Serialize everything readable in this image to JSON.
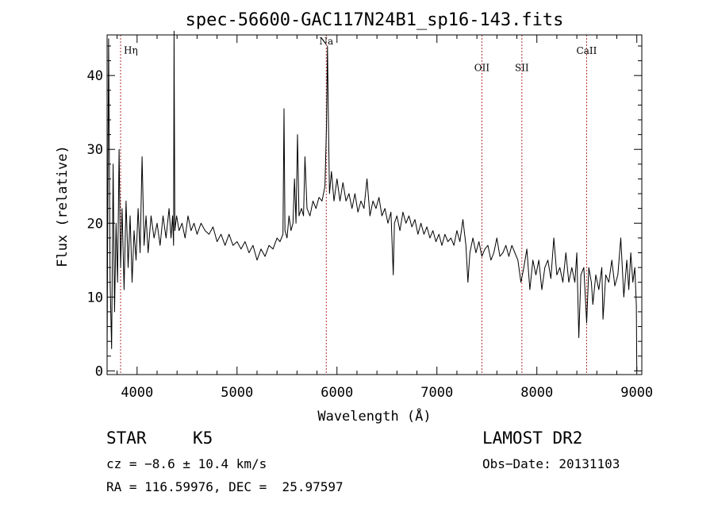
{
  "chart_data": {
    "type": "line",
    "title": "spec-56600-GAC117N24B1_sp16-143.fits",
    "xlabel": "Wavelength (Å)",
    "ylabel": "Flux (relative)",
    "xlim": [
      3700,
      9050
    ],
    "ylim": [
      -0.5,
      45.5
    ],
    "x_ticks": [
      4000,
      5000,
      6000,
      7000,
      8000,
      9000
    ],
    "y_ticks": [
      0,
      10,
      20,
      30,
      40
    ],
    "series": [
      {
        "color": "#000000",
        "points": [
          [
            3700,
            2
          ],
          [
            3715,
            45
          ],
          [
            3730,
            12
          ],
          [
            3745,
            3
          ],
          [
            3760,
            28
          ],
          [
            3775,
            8
          ],
          [
            3790,
            20
          ],
          [
            3805,
            12
          ],
          [
            3820,
            30
          ],
          [
            3835,
            14
          ],
          [
            3850,
            22
          ],
          [
            3870,
            11
          ],
          [
            3890,
            23
          ],
          [
            3910,
            14
          ],
          [
            3930,
            21
          ],
          [
            3950,
            12
          ],
          [
            3970,
            19
          ],
          [
            3990,
            15
          ],
          [
            4010,
            22
          ],
          [
            4030,
            16
          ],
          [
            4050,
            29
          ],
          [
            4070,
            17
          ],
          [
            4090,
            21
          ],
          [
            4110,
            16
          ],
          [
            4140,
            21
          ],
          [
            4170,
            18
          ],
          [
            4200,
            20
          ],
          [
            4230,
            17
          ],
          [
            4260,
            21
          ],
          [
            4290,
            18
          ],
          [
            4320,
            22
          ],
          [
            4340,
            18
          ],
          [
            4355,
            21
          ],
          [
            4365,
            17
          ],
          [
            4370,
            46
          ],
          [
            4378,
            19
          ],
          [
            4395,
            21
          ],
          [
            4420,
            19
          ],
          [
            4450,
            20
          ],
          [
            4480,
            18
          ],
          [
            4510,
            21
          ],
          [
            4540,
            19
          ],
          [
            4570,
            20
          ],
          [
            4600,
            18.5
          ],
          [
            4640,
            20
          ],
          [
            4680,
            19
          ],
          [
            4720,
            18.5
          ],
          [
            4760,
            19.5
          ],
          [
            4800,
            17.5
          ],
          [
            4840,
            18.5
          ],
          [
            4880,
            17
          ],
          [
            4920,
            18.5
          ],
          [
            4960,
            17
          ],
          [
            5000,
            17.5
          ],
          [
            5040,
            16.5
          ],
          [
            5080,
            17.5
          ],
          [
            5120,
            16
          ],
          [
            5160,
            17
          ],
          [
            5200,
            15
          ],
          [
            5240,
            16.5
          ],
          [
            5280,
            15.5
          ],
          [
            5320,
            17
          ],
          [
            5360,
            16.5
          ],
          [
            5400,
            18
          ],
          [
            5430,
            17.5
          ],
          [
            5460,
            18.5
          ],
          [
            5470,
            35.5
          ],
          [
            5480,
            19
          ],
          [
            5500,
            18
          ],
          [
            5520,
            21
          ],
          [
            5540,
            19
          ],
          [
            5560,
            20
          ],
          [
            5575,
            26
          ],
          [
            5590,
            20
          ],
          [
            5605,
            32
          ],
          [
            5620,
            21
          ],
          [
            5645,
            22
          ],
          [
            5665,
            21
          ],
          [
            5680,
            29
          ],
          [
            5700,
            22
          ],
          [
            5730,
            21
          ],
          [
            5760,
            23
          ],
          [
            5790,
            22
          ],
          [
            5820,
            23.5
          ],
          [
            5850,
            23
          ],
          [
            5880,
            25
          ],
          [
            5895,
            33
          ],
          [
            5905,
            44
          ],
          [
            5912,
            36
          ],
          [
            5925,
            24
          ],
          [
            5945,
            27
          ],
          [
            5970,
            23
          ],
          [
            6000,
            26
          ],
          [
            6030,
            23
          ],
          [
            6060,
            25.5
          ],
          [
            6090,
            23
          ],
          [
            6120,
            24
          ],
          [
            6150,
            22
          ],
          [
            6180,
            24
          ],
          [
            6210,
            21.5
          ],
          [
            6240,
            23
          ],
          [
            6270,
            22
          ],
          [
            6300,
            26
          ],
          [
            6330,
            21
          ],
          [
            6360,
            23
          ],
          [
            6390,
            22
          ],
          [
            6420,
            23.5
          ],
          [
            6450,
            21
          ],
          [
            6480,
            22
          ],
          [
            6510,
            20
          ],
          [
            6540,
            21.5
          ],
          [
            6563,
            13
          ],
          [
            6575,
            20
          ],
          [
            6600,
            21
          ],
          [
            6630,
            19
          ],
          [
            6660,
            21.5
          ],
          [
            6690,
            20
          ],
          [
            6720,
            21
          ],
          [
            6750,
            19.5
          ],
          [
            6780,
            20.5
          ],
          [
            6810,
            18.5
          ],
          [
            6840,
            20
          ],
          [
            6870,
            18.5
          ],
          [
            6900,
            19.5
          ],
          [
            6930,
            18
          ],
          [
            6960,
            19
          ],
          [
            6990,
            17.5
          ],
          [
            7020,
            18.5
          ],
          [
            7050,
            17
          ],
          [
            7080,
            18.5
          ],
          [
            7110,
            17.5
          ],
          [
            7140,
            18
          ],
          [
            7170,
            17
          ],
          [
            7200,
            19
          ],
          [
            7230,
            17.5
          ],
          [
            7260,
            20.5
          ],
          [
            7290,
            17
          ],
          [
            7310,
            12
          ],
          [
            7330,
            16
          ],
          [
            7360,
            18
          ],
          [
            7390,
            16
          ],
          [
            7420,
            17.5
          ],
          [
            7450,
            15.5
          ],
          [
            7480,
            16.5
          ],
          [
            7510,
            17
          ],
          [
            7540,
            15
          ],
          [
            7570,
            16
          ],
          [
            7600,
            18
          ],
          [
            7630,
            15.5
          ],
          [
            7660,
            16
          ],
          [
            7690,
            17
          ],
          [
            7720,
            15.5
          ],
          [
            7750,
            17
          ],
          [
            7780,
            16
          ],
          [
            7810,
            15
          ],
          [
            7840,
            12
          ],
          [
            7870,
            14
          ],
          [
            7900,
            16.5
          ],
          [
            7930,
            11
          ],
          [
            7960,
            15
          ],
          [
            7990,
            13
          ],
          [
            8020,
            15
          ],
          [
            8050,
            11
          ],
          [
            8080,
            14
          ],
          [
            8110,
            15
          ],
          [
            8140,
            12.5
          ],
          [
            8170,
            18
          ],
          [
            8200,
            13
          ],
          [
            8230,
            14
          ],
          [
            8260,
            12
          ],
          [
            8290,
            16
          ],
          [
            8320,
            12
          ],
          [
            8350,
            14
          ],
          [
            8380,
            12
          ],
          [
            8400,
            16
          ],
          [
            8420,
            4.5
          ],
          [
            8440,
            13
          ],
          [
            8470,
            14
          ],
          [
            8498,
            6.5
          ],
          [
            8520,
            14
          ],
          [
            8545,
            12
          ],
          [
            8560,
            9
          ],
          [
            8590,
            13
          ],
          [
            8620,
            11
          ],
          [
            8650,
            14
          ],
          [
            8662,
            7
          ],
          [
            8690,
            13
          ],
          [
            8720,
            12
          ],
          [
            8750,
            15
          ],
          [
            8780,
            11.5
          ],
          [
            8810,
            13
          ],
          [
            8840,
            18
          ],
          [
            8870,
            10
          ],
          [
            8900,
            15
          ],
          [
            8920,
            11
          ],
          [
            8940,
            16
          ],
          [
            8960,
            12
          ],
          [
            8980,
            14
          ],
          [
            8995,
            9
          ],
          [
            9000,
            0
          ]
        ]
      }
    ],
    "lines": [
      {
        "label": "Hη",
        "x": 3835,
        "label_y": 43
      },
      {
        "label": "Na",
        "x": 5893,
        "label_y": 44.2
      },
      {
        "label": "OII",
        "x": 7450,
        "label_y": 40.6
      },
      {
        "label": "SII",
        "x": 7850,
        "label_y": 40.6
      },
      {
        "label": "CaII",
        "x": 8498,
        "label_y": 42.9
      }
    ],
    "line_color": "#b03030"
  },
  "info": {
    "object_class": "STAR",
    "subclass": "K5",
    "survey": "LAMOST DR2",
    "cz": "cz = −8.6 ± 10.4 km/s",
    "obs_date": "Obs−Date: 20131103",
    "coords": "RA = 116.59976, DEC =  25.97597"
  }
}
